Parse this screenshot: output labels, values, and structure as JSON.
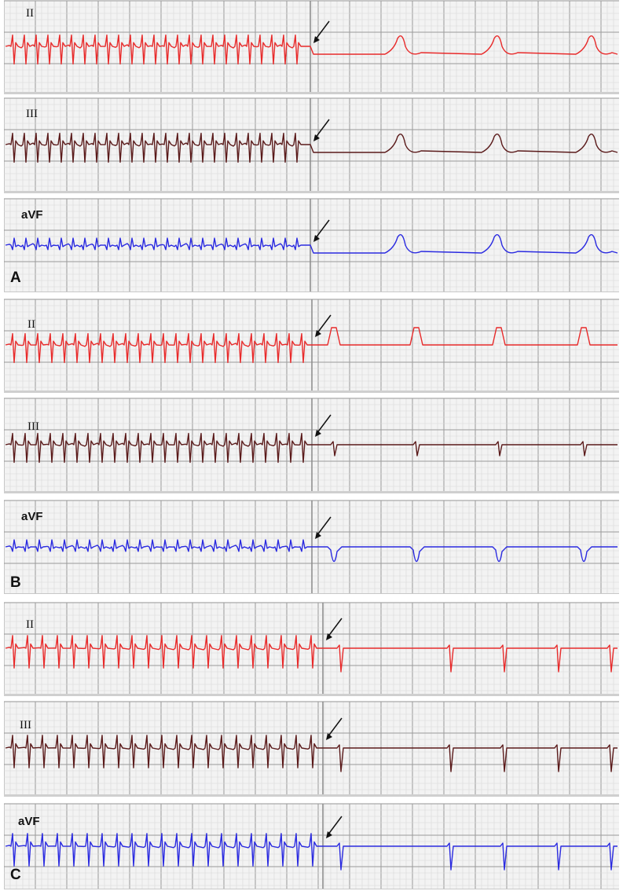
{
  "panels": [
    {
      "label": "A",
      "strips": [
        {
          "lead": "II",
          "color": "#e82a2a",
          "label_style": "serif",
          "onset": "sinus-restoration"
        },
        {
          "lead": "III",
          "color": "#5a1a1a",
          "label_style": "serif",
          "onset": "sinus-restoration"
        },
        {
          "lead": "aVF",
          "color": "#2a2ae0",
          "label_style": "sans",
          "onset": "sinus-restoration"
        }
      ]
    },
    {
      "label": "B",
      "strips": [
        {
          "lead": "II",
          "color": "#e82a2a",
          "label_style": "serif",
          "onset": "conversion"
        },
        {
          "lead": "III",
          "color": "#5a1a1a",
          "label_style": "serif",
          "onset": "conversion"
        },
        {
          "lead": "aVF",
          "color": "#2a2ae0",
          "label_style": "sans",
          "onset": "conversion"
        }
      ]
    },
    {
      "label": "C",
      "strips": [
        {
          "lead": "II",
          "color": "#e82a2a",
          "label_style": "serif",
          "onset": "conversion"
        },
        {
          "lead": "III",
          "color": "#5a1a1a",
          "label_style": "serif",
          "onset": "conversion"
        },
        {
          "lead": "aVF",
          "color": "#2a2ae0",
          "label_style": "sans",
          "onset": "conversion"
        }
      ]
    }
  ],
  "colors": {
    "grid_minor": "#d8d8d8",
    "grid_major": "#9a9a9a",
    "background": "#f3f3f3",
    "arrow": "#111111"
  },
  "icons": {
    "arrow": "diagonal-arrow-icon"
  }
}
